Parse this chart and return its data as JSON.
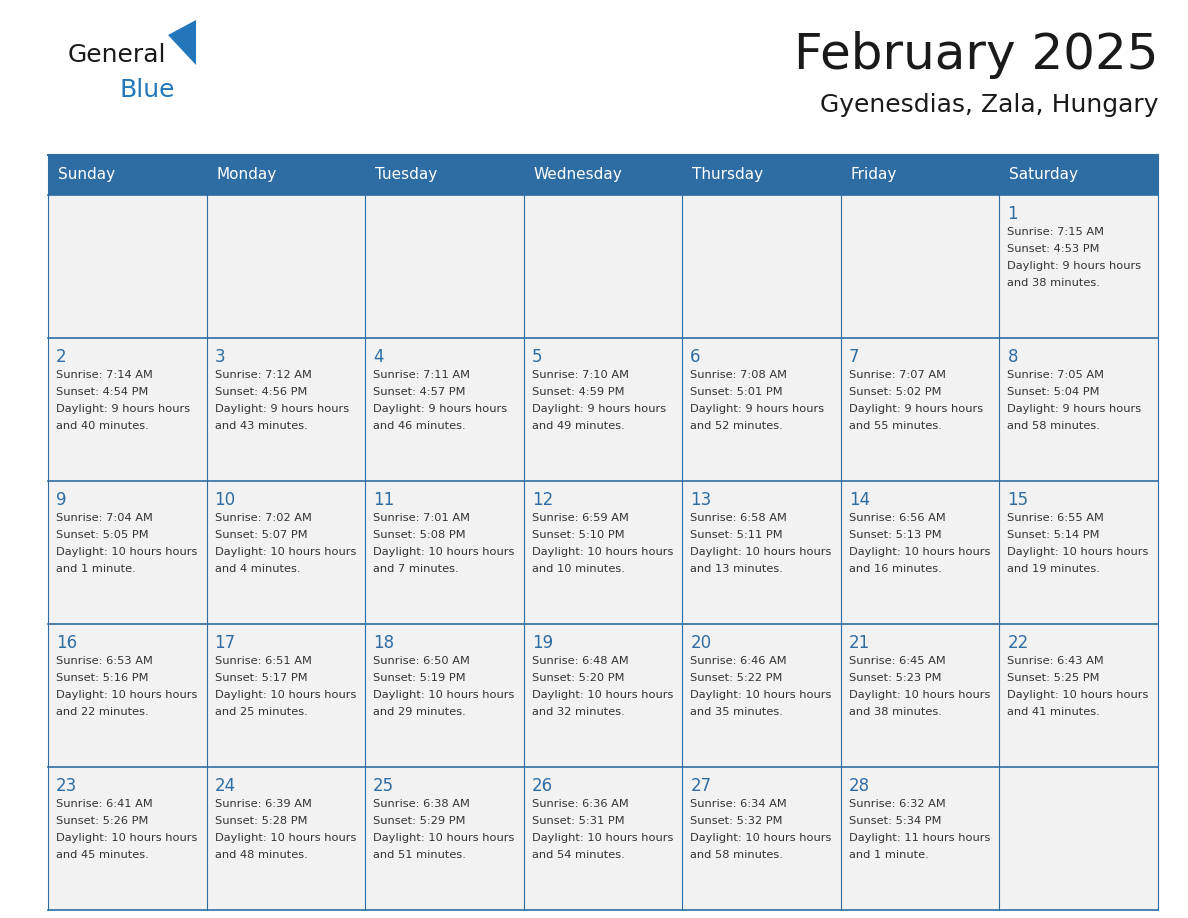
{
  "title": "February 2025",
  "subtitle": "Gyenesdias, Zala, Hungary",
  "header_bg_color": "#2E6DA4",
  "header_text_color": "#FFFFFF",
  "cell_bg_color": "#F2F2F2",
  "cell_text_color": "#333333",
  "day_number_color": "#2E6DA4",
  "grid_line_color": "#2E6DA4",
  "days_of_week": [
    "Sunday",
    "Monday",
    "Tuesday",
    "Wednesday",
    "Thursday",
    "Friday",
    "Saturday"
  ],
  "title_color": "#1a1a1a",
  "subtitle_color": "#1a1a1a",
  "logo_general_color": "#1a1a1a",
  "logo_blue_color": "#2277BB",
  "calendar": [
    [
      null,
      null,
      null,
      null,
      null,
      null,
      1
    ],
    [
      2,
      3,
      4,
      5,
      6,
      7,
      8
    ],
    [
      9,
      10,
      11,
      12,
      13,
      14,
      15
    ],
    [
      16,
      17,
      18,
      19,
      20,
      21,
      22
    ],
    [
      23,
      24,
      25,
      26,
      27,
      28,
      null
    ]
  ],
  "sun_data": {
    "1": {
      "rise": "7:15 AM",
      "set": "4:53 PM",
      "daylight": "9 hours and 38 minutes."
    },
    "2": {
      "rise": "7:14 AM",
      "set": "4:54 PM",
      "daylight": "9 hours and 40 minutes."
    },
    "3": {
      "rise": "7:12 AM",
      "set": "4:56 PM",
      "daylight": "9 hours and 43 minutes."
    },
    "4": {
      "rise": "7:11 AM",
      "set": "4:57 PM",
      "daylight": "9 hours and 46 minutes."
    },
    "5": {
      "rise": "7:10 AM",
      "set": "4:59 PM",
      "daylight": "9 hours and 49 minutes."
    },
    "6": {
      "rise": "7:08 AM",
      "set": "5:01 PM",
      "daylight": "9 hours and 52 minutes."
    },
    "7": {
      "rise": "7:07 AM",
      "set": "5:02 PM",
      "daylight": "9 hours and 55 minutes."
    },
    "8": {
      "rise": "7:05 AM",
      "set": "5:04 PM",
      "daylight": "9 hours and 58 minutes."
    },
    "9": {
      "rise": "7:04 AM",
      "set": "5:05 PM",
      "daylight": "10 hours and 1 minute."
    },
    "10": {
      "rise": "7:02 AM",
      "set": "5:07 PM",
      "daylight": "10 hours and 4 minutes."
    },
    "11": {
      "rise": "7:01 AM",
      "set": "5:08 PM",
      "daylight": "10 hours and 7 minutes."
    },
    "12": {
      "rise": "6:59 AM",
      "set": "5:10 PM",
      "daylight": "10 hours and 10 minutes."
    },
    "13": {
      "rise": "6:58 AM",
      "set": "5:11 PM",
      "daylight": "10 hours and 13 minutes."
    },
    "14": {
      "rise": "6:56 AM",
      "set": "5:13 PM",
      "daylight": "10 hours and 16 minutes."
    },
    "15": {
      "rise": "6:55 AM",
      "set": "5:14 PM",
      "daylight": "10 hours and 19 minutes."
    },
    "16": {
      "rise": "6:53 AM",
      "set": "5:16 PM",
      "daylight": "10 hours and 22 minutes."
    },
    "17": {
      "rise": "6:51 AM",
      "set": "5:17 PM",
      "daylight": "10 hours and 25 minutes."
    },
    "18": {
      "rise": "6:50 AM",
      "set": "5:19 PM",
      "daylight": "10 hours and 29 minutes."
    },
    "19": {
      "rise": "6:48 AM",
      "set": "5:20 PM",
      "daylight": "10 hours and 32 minutes."
    },
    "20": {
      "rise": "6:46 AM",
      "set": "5:22 PM",
      "daylight": "10 hours and 35 minutes."
    },
    "21": {
      "rise": "6:45 AM",
      "set": "5:23 PM",
      "daylight": "10 hours and 38 minutes."
    },
    "22": {
      "rise": "6:43 AM",
      "set": "5:25 PM",
      "daylight": "10 hours and 41 minutes."
    },
    "23": {
      "rise": "6:41 AM",
      "set": "5:26 PM",
      "daylight": "10 hours and 45 minutes."
    },
    "24": {
      "rise": "6:39 AM",
      "set": "5:28 PM",
      "daylight": "10 hours and 48 minutes."
    },
    "25": {
      "rise": "6:38 AM",
      "set": "5:29 PM",
      "daylight": "10 hours and 51 minutes."
    },
    "26": {
      "rise": "6:36 AM",
      "set": "5:31 PM",
      "daylight": "10 hours and 54 minutes."
    },
    "27": {
      "rise": "6:34 AM",
      "set": "5:32 PM",
      "daylight": "10 hours and 58 minutes."
    },
    "28": {
      "rise": "6:32 AM",
      "set": "5:34 PM",
      "daylight": "11 hours and 1 minute."
    }
  }
}
